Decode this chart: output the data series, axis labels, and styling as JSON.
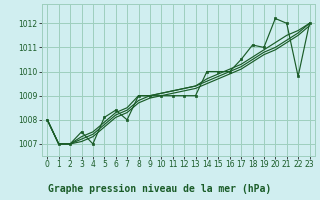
{
  "title": "Graphe pression niveau de la mer (hPa)",
  "background_color": "#d0eef0",
  "grid_color": "#9ecfbe",
  "line_color": "#1a5c28",
  "marker_color": "#1a5c28",
  "x_values": [
    0,
    1,
    2,
    3,
    4,
    5,
    6,
    7,
    8,
    9,
    10,
    11,
    12,
    13,
    14,
    15,
    16,
    17,
    18,
    19,
    20,
    21,
    22,
    23
  ],
  "y_main": [
    1008.0,
    1007.0,
    1007.0,
    1007.5,
    1007.0,
    1008.1,
    1008.4,
    1008.0,
    1009.0,
    1009.0,
    1009.0,
    1009.0,
    1009.0,
    1009.0,
    1010.0,
    1010.0,
    1010.0,
    1010.5,
    1011.1,
    1011.0,
    1012.2,
    1012.0,
    1009.8,
    1012.0
  ],
  "y_line2": [
    1008.0,
    1007.0,
    1007.0,
    1007.2,
    1007.4,
    1007.8,
    1008.2,
    1008.4,
    1008.8,
    1009.0,
    1009.1,
    1009.2,
    1009.3,
    1009.4,
    1009.6,
    1009.8,
    1010.0,
    1010.2,
    1010.5,
    1010.8,
    1011.0,
    1011.3,
    1011.6,
    1012.0
  ],
  "y_line3": [
    1008.0,
    1007.0,
    1007.0,
    1007.3,
    1007.5,
    1007.9,
    1008.3,
    1008.5,
    1009.0,
    1009.0,
    1009.1,
    1009.2,
    1009.3,
    1009.4,
    1009.7,
    1009.9,
    1010.1,
    1010.3,
    1010.6,
    1010.9,
    1011.2,
    1011.5,
    1011.7,
    1012.0
  ],
  "y_line4": [
    1008.0,
    1007.0,
    1007.0,
    1007.1,
    1007.3,
    1007.7,
    1008.1,
    1008.3,
    1008.7,
    1008.9,
    1009.0,
    1009.1,
    1009.2,
    1009.3,
    1009.5,
    1009.7,
    1009.9,
    1010.1,
    1010.4,
    1010.7,
    1010.9,
    1011.2,
    1011.5,
    1011.9
  ],
  "ylim": [
    1006.5,
    1012.8
  ],
  "xlim": [
    -0.5,
    23.5
  ],
  "yticks": [
    1007,
    1008,
    1009,
    1010,
    1011,
    1012
  ],
  "xticks": [
    0,
    1,
    2,
    3,
    4,
    5,
    6,
    7,
    8,
    9,
    10,
    11,
    12,
    13,
    14,
    15,
    16,
    17,
    18,
    19,
    20,
    21,
    22,
    23
  ],
  "tick_fontsize": 5.5,
  "title_fontsize": 7.0,
  "bottom_bar_color": "#2a5c2a"
}
